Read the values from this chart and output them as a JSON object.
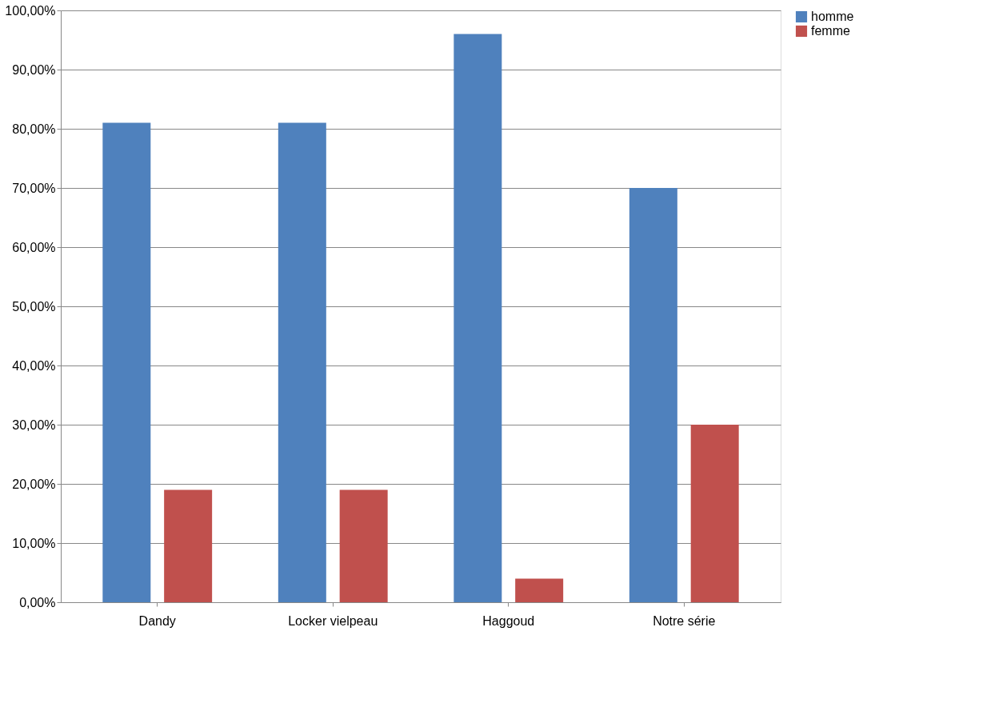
{
  "chart_data": {
    "type": "bar",
    "categories": [
      "Dandy",
      "Locker vielpeau",
      "Haggoud",
      "Notre série"
    ],
    "series": [
      {
        "name": "homme",
        "color": "#4f81bd",
        "values": [
          81,
          81,
          96,
          70
        ]
      },
      {
        "name": "femme",
        "color": "#c0504d",
        "values": [
          19,
          19,
          4,
          30
        ]
      }
    ],
    "ylim": [
      0,
      100
    ],
    "yticks": [
      {
        "value": 0,
        "label": "0,00%"
      },
      {
        "value": 10,
        "label": "10,00%"
      },
      {
        "value": 20,
        "label": "20,00%"
      },
      {
        "value": 30,
        "label": "30,00%"
      },
      {
        "value": 40,
        "label": "40,00%"
      },
      {
        "value": 50,
        "label": "50,00%"
      },
      {
        "value": 60,
        "label": "60,00%"
      },
      {
        "value": 70,
        "label": "70,00%"
      },
      {
        "value": 80,
        "label": "80,00%"
      },
      {
        "value": 90,
        "label": "90,00%"
      },
      {
        "value": 100,
        "label": "100,00%"
      }
    ],
    "grid": "y",
    "legend": "right"
  }
}
